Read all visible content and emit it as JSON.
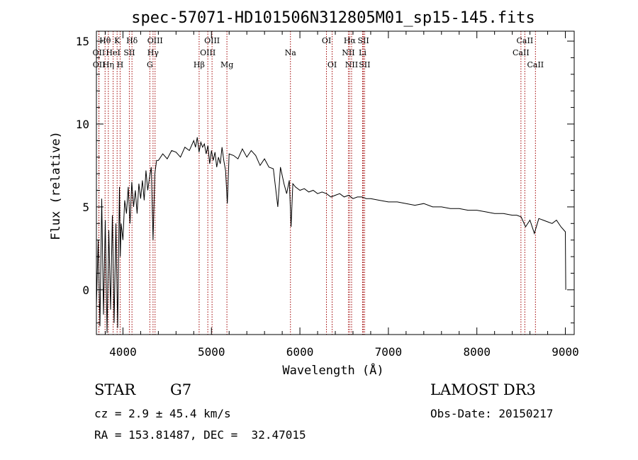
{
  "chart_data": {
    "type": "line",
    "title": "spec-57071-HD101506N312805M01_sp15-145.fits",
    "xlabel": "Wavelength (Å)",
    "ylabel": "Flux (relative)",
    "xlim": [
      3700,
      9100
    ],
    "ylim": [
      -2.7,
      15.6
    ],
    "xticks": [
      4000,
      5000,
      6000,
      7000,
      8000,
      9000
    ],
    "yticks": [
      0,
      5,
      10,
      15
    ],
    "spectral_lines": [
      {
        "label": "Hθ",
        "wave": 3798,
        "row": 0
      },
      {
        "label": "OII",
        "wave": 3727,
        "row": 1
      },
      {
        "label": "OII",
        "wave": 3729,
        "row": 2
      },
      {
        "label": "Hη",
        "wave": 3835,
        "row": 2
      },
      {
        "label": "HeI",
        "wave": 3889,
        "row": 1
      },
      {
        "label": "K",
        "wave": 3934,
        "row": 0
      },
      {
        "label": "H",
        "wave": 3968,
        "row": 2
      },
      {
        "label": "Hδ",
        "wave": 4102,
        "row": 0
      },
      {
        "label": "SII",
        "wave": 4072,
        "row": 1
      },
      {
        "label": "OIII",
        "wave": 4363,
        "row": 0
      },
      {
        "label": "Hγ",
        "wave": 4340,
        "row": 1
      },
      {
        "label": "G",
        "wave": 4304,
        "row": 2
      },
      {
        "label": "Hβ",
        "wave": 4861,
        "row": 2
      },
      {
        "label": "OIII",
        "wave": 5007,
        "row": 0
      },
      {
        "label": "OIII",
        "wave": 4959,
        "row": 1
      },
      {
        "label": "Mg",
        "wave": 5175,
        "row": 2
      },
      {
        "label": "Na",
        "wave": 5893,
        "row": 1
      },
      {
        "label": "OI",
        "wave": 6300,
        "row": 0
      },
      {
        "label": "OI",
        "wave": 6364,
        "row": 2
      },
      {
        "label": "Hα",
        "wave": 6563,
        "row": 0
      },
      {
        "label": "NII",
        "wave": 6548,
        "row": 1
      },
      {
        "label": "NII",
        "wave": 6584,
        "row": 2
      },
      {
        "label": "SII",
        "wave": 6717,
        "row": 0
      },
      {
        "label": "Li",
        "wave": 6708,
        "row": 1
      },
      {
        "label": "SII",
        "wave": 6731,
        "row": 2
      },
      {
        "label": "CaII",
        "wave": 8542,
        "row": 0
      },
      {
        "label": "CaII",
        "wave": 8498,
        "row": 1
      },
      {
        "label": "CaII",
        "wave": 8662,
        "row": 2
      }
    ],
    "series": [
      {
        "name": "flux",
        "x": [
          3700,
          3720,
          3740,
          3760,
          3780,
          3800,
          3820,
          3840,
          3860,
          3880,
          3900,
          3920,
          3940,
          3960,
          3970,
          3980,
          4000,
          4020,
          4040,
          4060,
          4080,
          4100,
          4120,
          4140,
          4160,
          4180,
          4200,
          4220,
          4240,
          4260,
          4280,
          4300,
          4320,
          4340,
          4360,
          4380,
          4400,
          4450,
          4500,
          4550,
          4600,
          4650,
          4700,
          4750,
          4800,
          4820,
          4840,
          4860,
          4880,
          4900,
          4920,
          4940,
          4960,
          4980,
          5000,
          5020,
          5040,
          5060,
          5080,
          5100,
          5120,
          5140,
          5160,
          5180,
          5200,
          5250,
          5300,
          5350,
          5400,
          5450,
          5500,
          5550,
          5600,
          5650,
          5700,
          5750,
          5780,
          5800,
          5820,
          5850,
          5880,
          5900,
          5920,
          5950,
          6000,
          6050,
          6100,
          6150,
          6200,
          6250,
          6300,
          6350,
          6400,
          6450,
          6500,
          6550,
          6600,
          6650,
          6700,
          6750,
          6800,
          6900,
          7000,
          7100,
          7200,
          7300,
          7400,
          7500,
          7600,
          7700,
          7800,
          7900,
          8000,
          8100,
          8200,
          8300,
          8400,
          8450,
          8500,
          8550,
          8600,
          8650,
          8700,
          8750,
          8800,
          8850,
          8900,
          8950,
          9000,
          9005
        ],
        "values": [
          -1.0,
          3.0,
          -2.2,
          5.5,
          -1.5,
          4.2,
          -2.6,
          3.6,
          -1.2,
          4.5,
          -2.0,
          4.0,
          -2.3,
          6.2,
          2.0,
          4.0,
          3.0,
          5.4,
          4.6,
          6.2,
          4.0,
          6.5,
          5.0,
          6.0,
          4.6,
          6.4,
          5.5,
          6.6,
          5.4,
          7.2,
          6.0,
          6.8,
          7.4,
          3.0,
          7.0,
          7.8,
          7.8,
          8.2,
          7.9,
          8.4,
          8.3,
          8.0,
          8.6,
          8.4,
          9.0,
          8.6,
          9.2,
          8.3,
          8.9,
          8.6,
          8.8,
          8.2,
          8.7,
          7.6,
          8.4,
          7.8,
          8.3,
          7.4,
          8.0,
          7.6,
          8.6,
          7.8,
          7.2,
          5.2,
          8.2,
          8.1,
          7.9,
          8.5,
          8.0,
          8.4,
          8.1,
          7.5,
          7.9,
          7.4,
          7.3,
          5.0,
          7.4,
          6.9,
          6.4,
          5.8,
          6.6,
          3.8,
          6.4,
          6.2,
          6.0,
          6.1,
          5.9,
          6.0,
          5.8,
          5.9,
          5.8,
          5.6,
          5.7,
          5.8,
          5.6,
          5.7,
          5.5,
          5.6,
          5.6,
          5.5,
          5.5,
          5.4,
          5.3,
          5.3,
          5.2,
          5.1,
          5.2,
          5.0,
          5.0,
          4.9,
          4.9,
          4.8,
          4.8,
          4.7,
          4.6,
          4.6,
          4.5,
          4.5,
          4.4,
          3.8,
          4.2,
          3.4,
          4.3,
          4.2,
          4.1,
          4.0,
          4.2,
          3.8,
          3.5,
          0.0
        ]
      }
    ]
  },
  "info": {
    "object_type": "STAR",
    "subclass": "G7",
    "survey": "LAMOST DR3",
    "cz": "cz = 2.9 ± 45.4 km/s",
    "obs_date": "Obs-Date: 20150217",
    "coords": "RA = 153.81487, DEC =  32.47015"
  }
}
